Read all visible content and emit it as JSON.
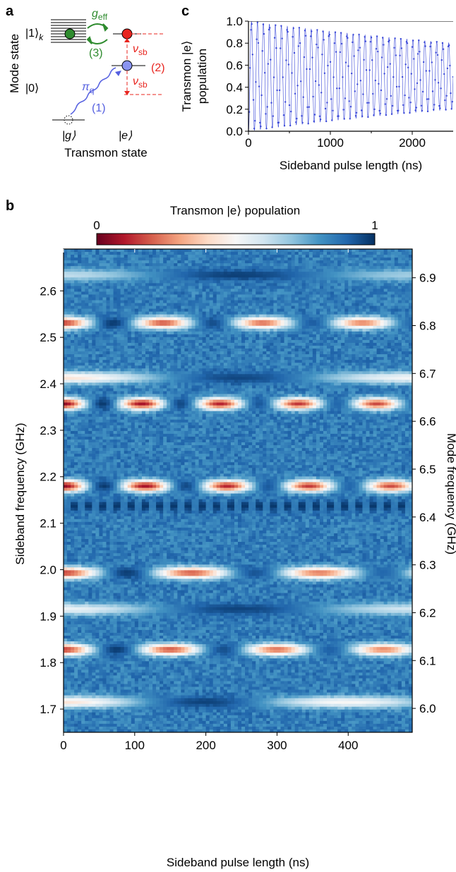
{
  "panels": {
    "a": "a",
    "b": "b",
    "c": "c"
  },
  "panel_a": {
    "ylabel": "Mode state",
    "xlabel": "Transmon state",
    "mode_k": "|1⟩",
    "mode_k_sub": "k",
    "mode_0": "|0⟩",
    "state_g": "|g⟩",
    "state_e": "|e⟩",
    "g_eff": "g",
    "g_eff_sub": "eff",
    "step1": "(1)",
    "step2": "(2)",
    "step3": "(3)",
    "pi_q": "π",
    "pi_q_sub": "q",
    "nu_sb": "ν",
    "nu_sb_sub": "sb",
    "colors": {
      "green": "#2e8b2e",
      "red": "#e8251f",
      "blue": "#5560e0",
      "dashed": "#e8251f"
    }
  },
  "colorbar": {
    "label": "Transmon |e⟩ population",
    "min_label": "0",
    "max_label": "1",
    "stops": [
      "#67001f",
      "#b2182b",
      "#d6604d",
      "#f4a582",
      "#fddbc7",
      "#f7f7f7",
      "#d1e5f0",
      "#92c5de",
      "#4393c3",
      "#2166ac",
      "#053061"
    ]
  },
  "chart_data": [
    {
      "type": "scatter",
      "panel": "c",
      "xlabel": "Sideband pulse length (ns)",
      "ylabel_line1": "Transmon |e⟩",
      "ylabel_line2": "population",
      "xlim": [
        0,
        2500
      ],
      "ylim": [
        0,
        1.0
      ],
      "xticks": [
        0,
        1000,
        2000
      ],
      "xminor": [
        500,
        1500
      ],
      "yticks": [
        0.0,
        0.2,
        0.4,
        0.6,
        0.8,
        1.0
      ],
      "ytick_labels": [
        "0.0",
        "0.2",
        "0.4",
        "0.6",
        "0.8",
        "1.0"
      ],
      "reference_line_y": 1.0,
      "series": [
        {
          "kind": "damped-oscillation",
          "period_ns": 73,
          "amplitude": 0.5,
          "offset": 0.5,
          "decay_envelope_at_2500ns": 0.6,
          "color": "#3a48d8"
        }
      ]
    },
    {
      "type": "heatmap",
      "panel": "b",
      "xlabel": "Sideband pulse length (ns)",
      "ylabel": "Sideband frequency (GHz)",
      "ylabel_right": "Mode frequency (GHz)",
      "xlim": [
        0,
        490
      ],
      "ylim": [
        1.65,
        2.69
      ],
      "ylim_right": [
        5.95,
        6.96
      ],
      "xticks": [
        0,
        100,
        200,
        300,
        400
      ],
      "yticks": [
        1.7,
        1.8,
        1.9,
        2.0,
        2.1,
        2.2,
        2.3,
        2.4,
        2.5,
        2.6
      ],
      "ytick_labels": [
        "1.7",
        "1.8",
        "1.9",
        "2.0",
        "2.1",
        "2.2",
        "2.3",
        "2.4",
        "2.5",
        "2.6"
      ],
      "yticks_right": [
        6.0,
        6.1,
        6.2,
        6.3,
        6.4,
        6.5,
        6.6,
        6.7,
        6.8,
        6.9
      ],
      "ytick_labels_right": [
        "6.0",
        "6.1",
        "6.2",
        "6.3",
        "6.4",
        "6.5",
        "6.6",
        "6.7",
        "6.8",
        "6.9"
      ],
      "background_population": 0.85,
      "resonances": [
        {
          "freq": 1.715,
          "period_ns": 400,
          "strength": 0.6
        },
        {
          "freq": 1.828,
          "period_ns": 150,
          "strength": 0.9
        },
        {
          "freq": 1.915,
          "period_ns": 500,
          "strength": 0.5
        },
        {
          "freq": 1.993,
          "period_ns": 180,
          "strength": 0.9
        },
        {
          "freq": 2.137,
          "period_ns": 0,
          "strength": 0.3
        },
        {
          "freq": 2.18,
          "period_ns": 115,
          "strength": 1.0
        },
        {
          "freq": 2.357,
          "period_ns": 110,
          "strength": 1.0
        },
        {
          "freq": 2.413,
          "period_ns": 500,
          "strength": 0.6
        },
        {
          "freq": 2.531,
          "period_ns": 140,
          "strength": 0.9
        },
        {
          "freq": 2.634,
          "period_ns": 500,
          "strength": 0.4
        }
      ]
    }
  ]
}
